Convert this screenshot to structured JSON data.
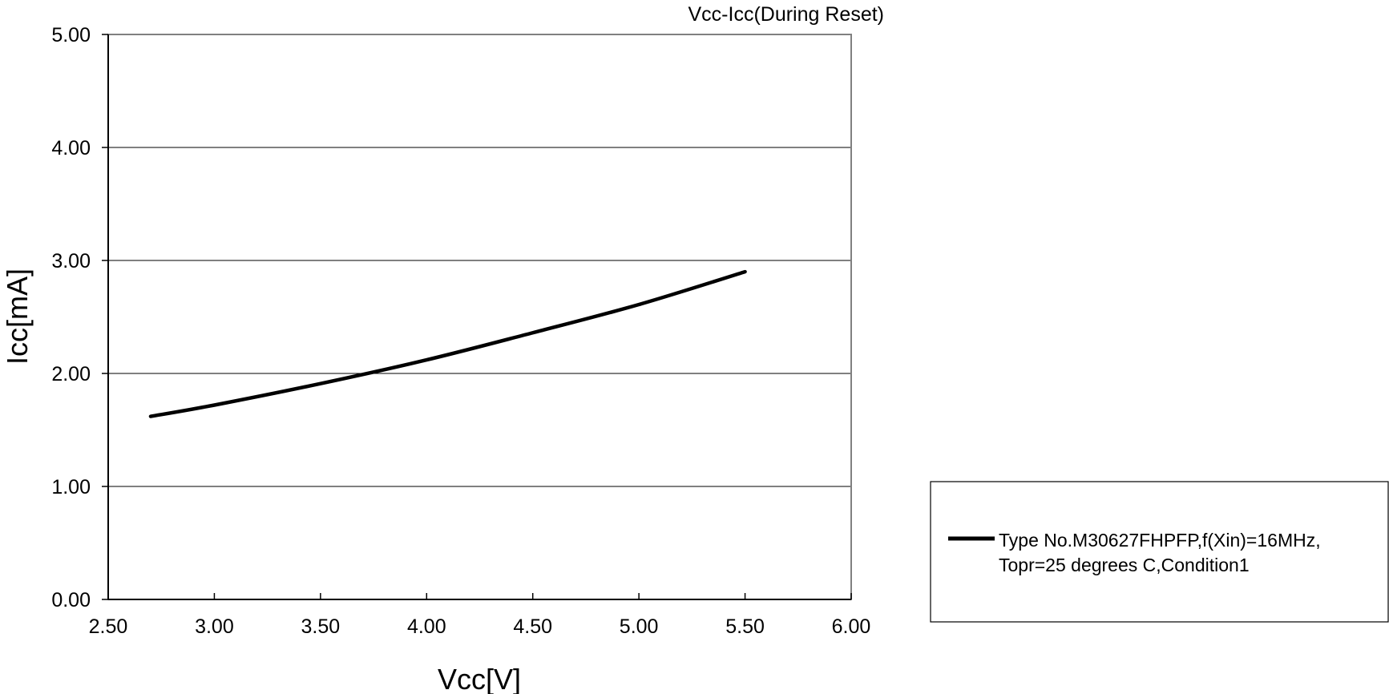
{
  "chart_data": {
    "type": "line",
    "title": "Vcc-Icc(During Reset)",
    "xlabel": "Vcc[V]",
    "ylabel": "Icc[mA]",
    "xlim": [
      2.5,
      6.0
    ],
    "ylim": [
      0.0,
      5.0
    ],
    "x_ticks": [
      "2.50",
      "3.00",
      "3.50",
      "4.00",
      "4.50",
      "5.00",
      "5.50",
      "6.00"
    ],
    "y_ticks": [
      "0.00",
      "1.00",
      "2.00",
      "3.00",
      "4.00",
      "5.00"
    ],
    "grid": "horizontal",
    "legend_position": "right",
    "series": [
      {
        "name": "Type No.M30627FHPFP,f(Xin)=16MHz,\nTopr=25 degrees C,Condition1",
        "name_lines": [
          "Type No.M30627FHPFP,f(Xin)=16MHz,",
          "Topr=25 degrees C,Condition1"
        ],
        "color": "#000000",
        "x": [
          2.7,
          3.0,
          3.5,
          4.0,
          4.5,
          5.0,
          5.5
        ],
        "y": [
          1.62,
          1.72,
          1.91,
          2.12,
          2.36,
          2.61,
          2.9
        ]
      }
    ]
  }
}
